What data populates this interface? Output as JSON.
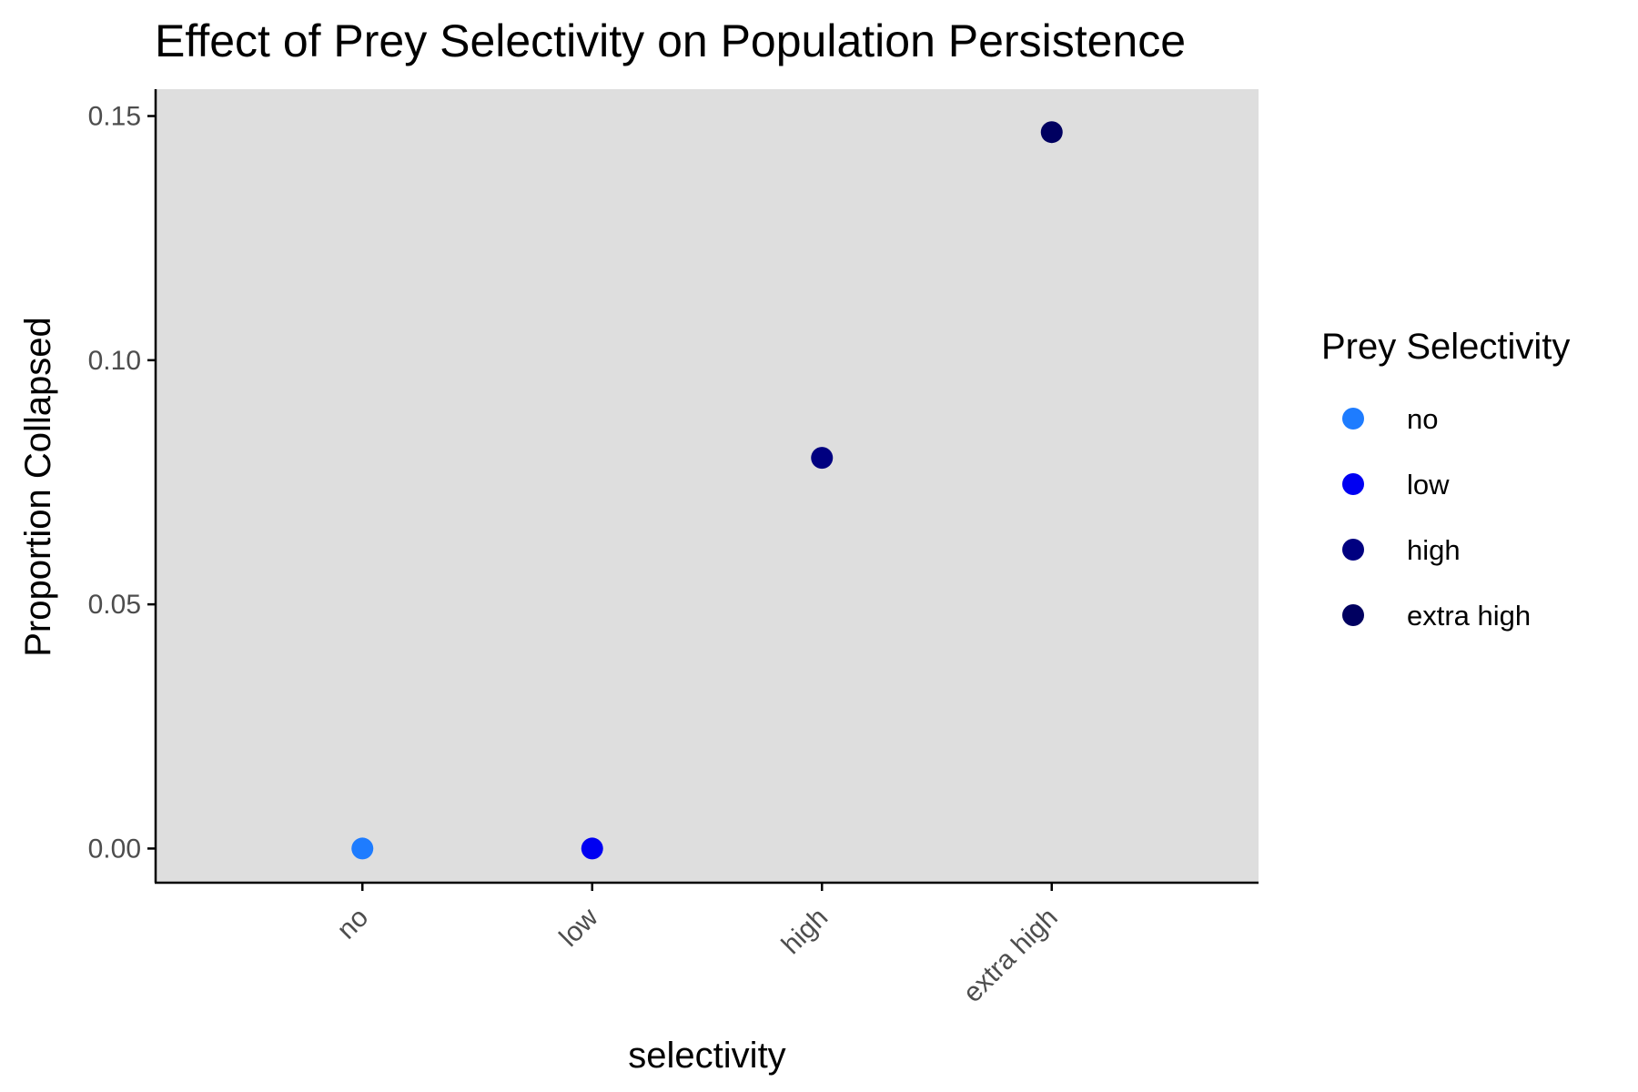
{
  "chart_data": {
    "type": "scatter",
    "title": "Effect of Prey Selectivity on Population Persistence",
    "xlabel": "selectivity",
    "ylabel": "Proportion Collapsed",
    "categories": [
      "no",
      "low",
      "high",
      "extra high"
    ],
    "values": [
      0.0,
      0.0,
      0.08,
      0.1467
    ],
    "ylim": [
      -0.007,
      0.1555
    ],
    "yticks": [
      0.0,
      0.05,
      0.1,
      0.15
    ],
    "ytick_labels": [
      "0.00",
      "0.05",
      "0.10",
      "0.15"
    ],
    "grid": false,
    "panel_background": "#DEDEDE",
    "legend": {
      "title": "Prey Selectivity",
      "placement": "right",
      "entries": [
        {
          "label": "no",
          "color": "#1E7CFF"
        },
        {
          "label": "low",
          "color": "#0000F2"
        },
        {
          "label": "high",
          "color": "#000080"
        },
        {
          "label": "extra high",
          "color": "#000060"
        }
      ]
    },
    "point_colors": [
      "#1E7CFF",
      "#0000F2",
      "#000080",
      "#000060"
    ]
  }
}
